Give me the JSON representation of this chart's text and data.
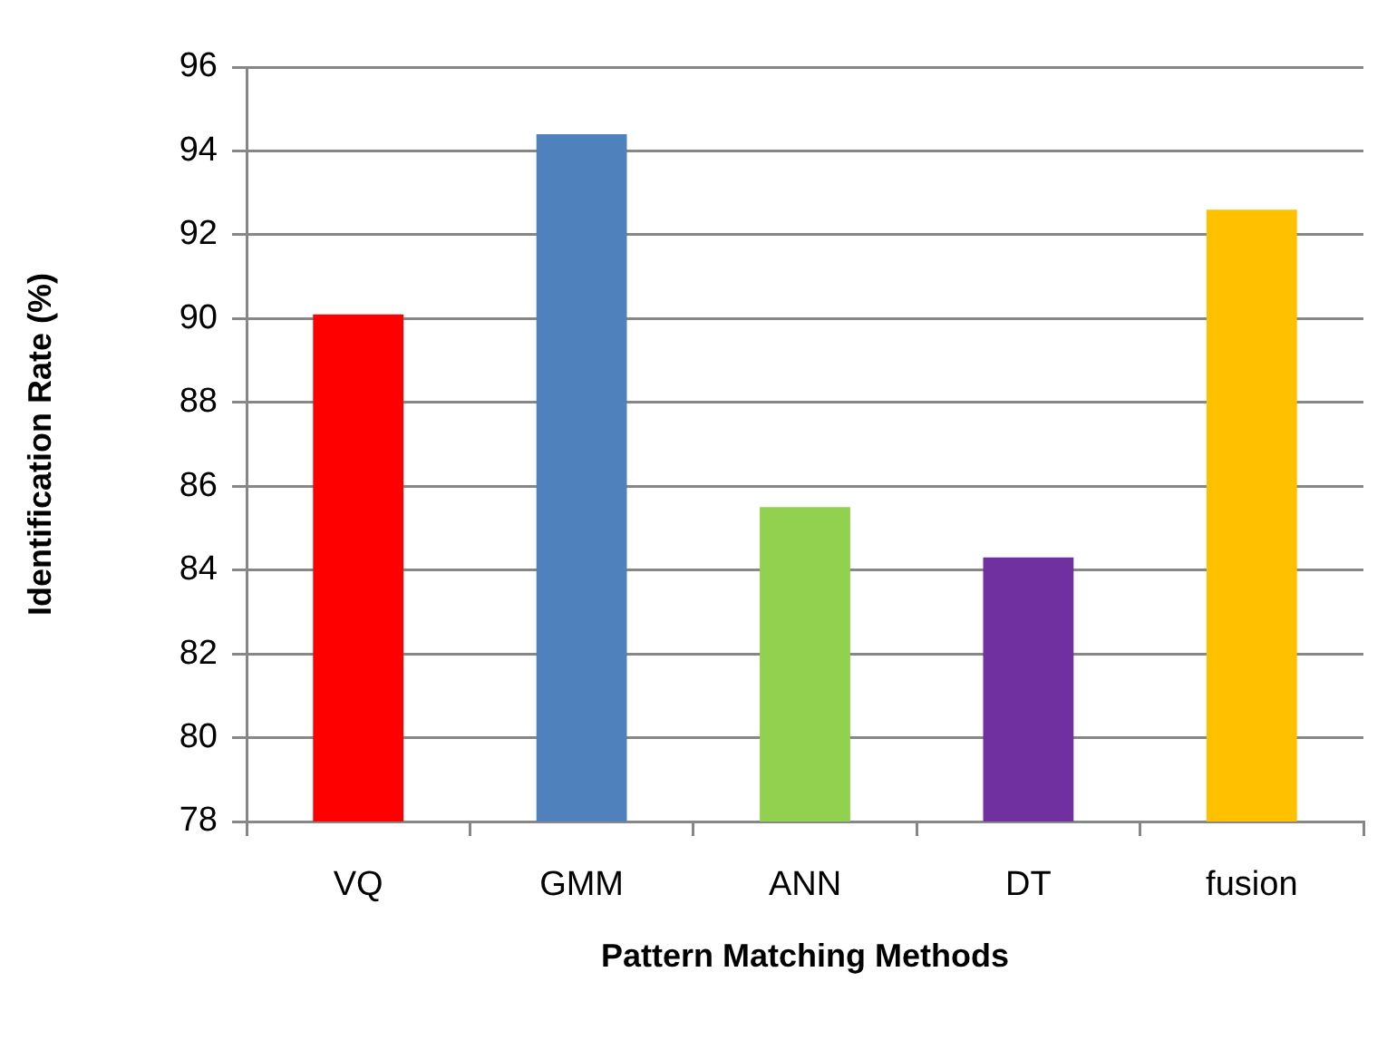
{
  "chart_data": {
    "type": "bar",
    "xlabel": "Pattern Matching Methods",
    "ylabel": "Identification Rate (%)",
    "categories": [
      "VQ",
      "GMM",
      "ANN",
      "DT",
      "fusion"
    ],
    "values": [
      90.1,
      94.4,
      85.5,
      84.3,
      92.6
    ],
    "colors": [
      "#ff0000",
      "#4f81bd",
      "#92d050",
      "#7030a0",
      "#ffc000"
    ],
    "ylim": [
      78,
      96
    ],
    "yticks": [
      78,
      80,
      82,
      84,
      86,
      88,
      90,
      92,
      94,
      96
    ],
    "grid": "y"
  }
}
